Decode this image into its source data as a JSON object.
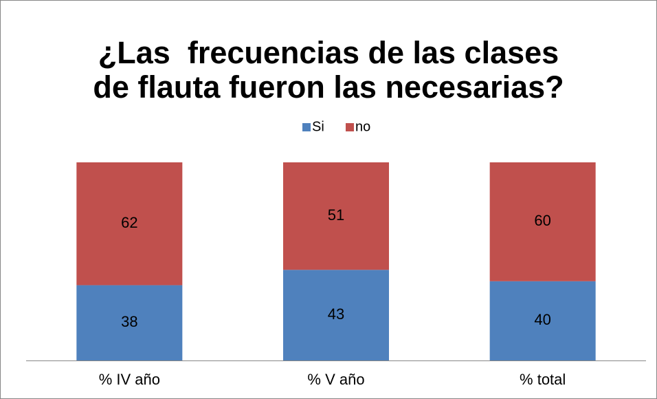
{
  "chart_data": {
    "type": "bar",
    "stacking": "percent",
    "title": [
      "¿Las  frecuencias de las clases",
      "de flauta fueron las necesarias?"
    ],
    "categories": [
      "% IV año",
      "% V año",
      "% total"
    ],
    "series": [
      {
        "name": "Si",
        "color": "#4f81bd",
        "values": [
          38,
          43,
          40
        ]
      },
      {
        "name": "no",
        "color": "#c0504d",
        "values": [
          62,
          51,
          60
        ]
      }
    ],
    "legend": "top"
  }
}
